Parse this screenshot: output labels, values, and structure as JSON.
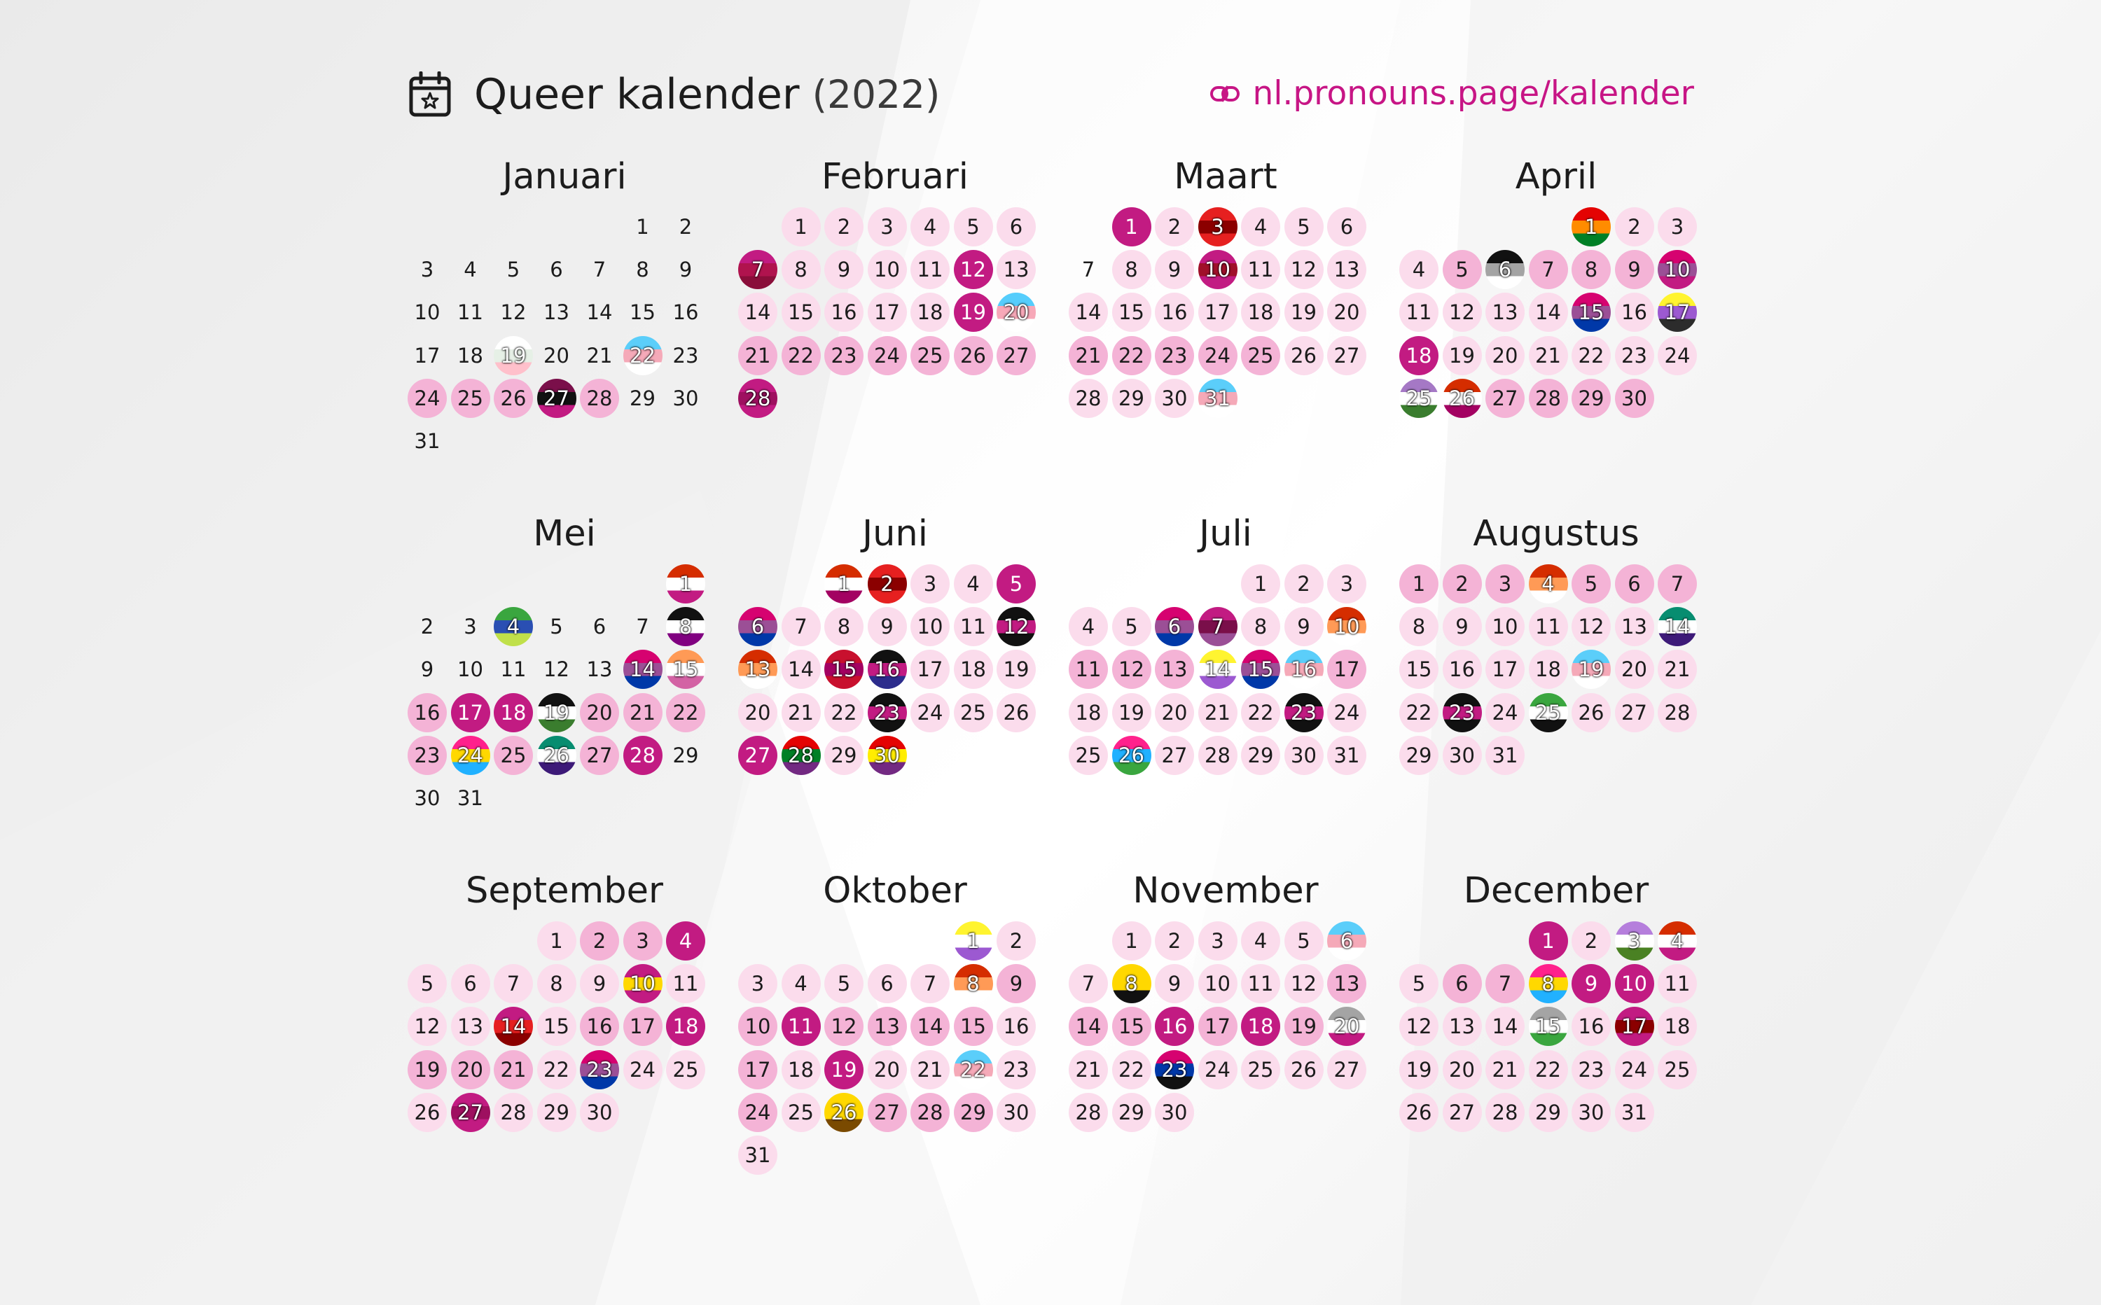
{
  "header": {
    "title": "Queer kalender",
    "year": "(2022)",
    "link": "nl.pronouns.page/kalender",
    "icon": "calendar-star-icon",
    "link_icon": "pronouns-logo-icon"
  },
  "colors": {
    "accent": "#c71585",
    "light": "#fbdcec",
    "medium": "#f4b3d6",
    "strong": "#c21b82"
  },
  "months": [
    {
      "name": "Januari",
      "start": 5,
      "len": 31,
      "l1": [],
      "l2": [
        24,
        25,
        26,
        28
      ],
      "l3": [],
      "flags": {
        "19": [
          "#ffffff",
          "#e6f0e6",
          "#ffc0cb"
        ],
        "22": [
          "#5bcefa",
          "#f5a9b8",
          "#ffffff"
        ],
        "27": [
          "#7a0f4a",
          "#111111",
          "#c21b82"
        ]
      }
    },
    {
      "name": "Februari",
      "start": 1,
      "len": 28,
      "l1": [
        1,
        2,
        3,
        4,
        5,
        6,
        8,
        9,
        10,
        11,
        13,
        14,
        15,
        16,
        17,
        18
      ],
      "l2": [
        21,
        22,
        23,
        24,
        25,
        26,
        27
      ],
      "l3": [
        12,
        19
      ],
      "flags": {
        "7": [
          "#c21b82",
          "#b0134e",
          "#8a0e3a"
        ],
        "20": [
          "#55cdfc",
          "#f7a8b8",
          "#ffffff"
        ],
        "28": [
          "#c21b82",
          "#9e1060",
          "#c21b82"
        ]
      }
    },
    {
      "name": "Maart",
      "start": 1,
      "len": 31,
      "l1": [
        2,
        4,
        5,
        6,
        8,
        9,
        11,
        12,
        13,
        14,
        15,
        16,
        17,
        18,
        19,
        20,
        26,
        27,
        28,
        29,
        30
      ],
      "l2": [
        21,
        22,
        23,
        24,
        25
      ],
      "l3": [
        1
      ],
      "flags": {
        "3": [
          "#e62020",
          "#8b0000",
          "#e62020"
        ],
        "10": [
          "#c21b82",
          "#a0102a",
          "#c21b82"
        ],
        "31": [
          "#5bcefa",
          "#f5a9b8",
          "#ffffff"
        ]
      }
    },
    {
      "name": "April",
      "start": 4,
      "len": 30,
      "l1": [
        2,
        3,
        4,
        11,
        12,
        13,
        14,
        16,
        19,
        20,
        21,
        22,
        23,
        24
      ],
      "l2": [
        5,
        7,
        8,
        9,
        27,
        28,
        29,
        30
      ],
      "l3": [
        18
      ],
      "flags": {
        "1": [
          "#e40303",
          "#ff8c00",
          "#008026"
        ],
        "6": [
          "#111111",
          "#a4a4a4",
          "#ffffff"
        ],
        "10": [
          "#d60270",
          "#9b4f96",
          "#c21b82"
        ],
        "15": [
          "#d60270",
          "#9b4f96",
          "#0038a8"
        ],
        "17": [
          "#fff430",
          "#9c59d1",
          "#2c2c2c"
        ],
        "25": [
          "#a578c5",
          "#ffffff",
          "#3a7d2e"
        ],
        "26": [
          "#d52d00",
          "#ffffff",
          "#a30262"
        ]
      }
    },
    {
      "name": "Mei",
      "start": 6,
      "len": 31,
      "l1": [],
      "l2": [
        16,
        20,
        21,
        22,
        23,
        25,
        27
      ],
      "l3": [
        17,
        18,
        28
      ],
      "flags": {
        "1": [
          "#d52d00",
          "#ffffff",
          "#c21b82"
        ],
        "4": [
          "#3aa63f",
          "#2a4fb3",
          "#c0e04a"
        ],
        "8": [
          "#111111",
          "#ffffff",
          "#800080"
        ],
        "14": [
          "#d60270",
          "#9b4f96",
          "#0038a8"
        ],
        "15": [
          "#ff9a56",
          "#ffffff",
          "#d362a4"
        ],
        "19": [
          "#111111",
          "#ffffff",
          "#3a7d2e"
        ],
        "24": [
          "#ff218c",
          "#ffd800",
          "#21b1ff"
        ],
        "26": [
          "#078d70",
          "#ffffff",
          "#3d1a78"
        ]
      }
    },
    {
      "name": "Juni",
      "start": 2,
      "len": 30,
      "l1": [
        3,
        4,
        7,
        8,
        9,
        10,
        11,
        14,
        17,
        18,
        19,
        20,
        21,
        22,
        24,
        25,
        26,
        29
      ],
      "l2": [],
      "l3": [
        5,
        27
      ],
      "flags": {
        "1": [
          "#d52d00",
          "#ffffff",
          "#a30262"
        ],
        "2": [
          "#e62020",
          "#8b0000",
          "#e62020"
        ],
        "6": [
          "#d60270",
          "#9b4f96",
          "#0038a8"
        ],
        "12": [
          "#111111",
          "#c21b82",
          "#111111"
        ],
        "13": [
          "#d52d00",
          "#ff9a56",
          "#ffffff"
        ],
        "15": [
          "#c8102e",
          "#a30262",
          "#c8102e"
        ],
        "16": [
          "#111111",
          "#c21b82",
          "#2c2c8c"
        ],
        "23": [
          "#111111",
          "#c21b82",
          "#111111"
        ],
        "28": [
          "#e40303",
          "#008026",
          "#732982"
        ],
        "30": [
          "#e40303",
          "#ffed00",
          "#732982"
        ]
      }
    },
    {
      "name": "Juli",
      "start": 4,
      "len": 31,
      "l1": [
        1,
        2,
        3,
        4,
        5,
        8,
        9,
        18,
        19,
        20,
        21,
        22,
        24,
        25,
        27,
        28,
        29,
        30,
        31
      ],
      "l2": [
        11,
        12,
        13,
        17
      ],
      "l3": [],
      "flags": {
        "6": [
          "#d60270",
          "#9b4f96",
          "#0038a8"
        ],
        "7": [
          "#c21b82",
          "#7a0f4a",
          "#9b4f96"
        ],
        "10": [
          "#d52d00",
          "#ff9a56",
          "#ffffff"
        ],
        "14": [
          "#fff430",
          "#ffffff",
          "#9c59d1"
        ],
        "15": [
          "#d60270",
          "#9b4f96",
          "#0038a8"
        ],
        "16": [
          "#5bcefa",
          "#f5a9b8",
          "#ffffff"
        ],
        "23": [
          "#111111",
          "#c21b82",
          "#111111"
        ],
        "26": [
          "#ff218c",
          "#21b1ff",
          "#3aa63f"
        ]
      }
    },
    {
      "name": "Augustus",
      "start": 0,
      "len": 31,
      "l1": [
        8,
        9,
        10,
        11,
        12,
        13,
        15,
        16,
        17,
        18,
        20,
        21,
        22,
        24,
        26,
        27,
        28,
        29,
        30,
        31
      ],
      "l2": [
        1,
        2,
        3,
        5,
        6,
        7
      ],
      "l3": [],
      "flags": {
        "4": [
          "#d52d00",
          "#ff9a56",
          "#ffffff"
        ],
        "14": [
          "#078d70",
          "#ffffff",
          "#3d1a78"
        ],
        "19": [
          "#5bcefa",
          "#f5a9b8",
          "#ffffff"
        ],
        "23": [
          "#111111",
          "#c21b82",
          "#111111"
        ],
        "25": [
          "#3aa63f",
          "#ffffff",
          "#111111"
        ]
      }
    },
    {
      "name": "September",
      "start": 3,
      "len": 30,
      "l1": [
        1,
        5,
        6,
        7,
        8,
        9,
        11,
        12,
        13,
        15,
        22,
        24,
        25,
        26,
        28,
        29,
        30
      ],
      "l2": [
        2,
        3,
        16,
        17,
        19,
        20,
        21
      ],
      "l3": [
        4,
        18
      ],
      "flags": {
        "10": [
          "#c21b82",
          "#ffd800",
          "#c21b82"
        ],
        "14": [
          "#c21b82",
          "#e62020",
          "#8b0000"
        ],
        "23": [
          "#d60270",
          "#9b4f96",
          "#0038a8"
        ],
        "27": [
          "#c21b82",
          "#9e1060",
          "#c21b82"
        ]
      }
    },
    {
      "name": "Oktober",
      "start": 5,
      "len": 31,
      "l1": [
        2,
        3,
        4,
        5,
        6,
        7,
        16,
        18,
        20,
        21,
        23,
        25,
        30,
        31
      ],
      "l2": [
        9,
        10,
        12,
        13,
        14,
        15,
        17,
        24,
        27,
        28,
        29
      ],
      "l3": [
        11,
        19
      ],
      "flags": {
        "1": [
          "#fff430",
          "#ffffff",
          "#9c59d1"
        ],
        "8": [
          "#d52d00",
          "#ff9a56",
          "#ffffff"
        ],
        "22": [
          "#5bcefa",
          "#f5a9b8",
          "#ffffff"
        ],
        "26": [
          "#ffd800",
          "#ffd800",
          "#7a4a00"
        ]
      }
    },
    {
      "name": "November",
      "start": 1,
      "len": 30,
      "l1": [
        1,
        2,
        3,
        4,
        5,
        7,
        9,
        10,
        11,
        12,
        21,
        22,
        24,
        25,
        26,
        27,
        28,
        29,
        30
      ],
      "l2": [
        13,
        14,
        15,
        17,
        19
      ],
      "l3": [
        16,
        18
      ],
      "flags": {
        "6": [
          "#5bcefa",
          "#f5a9b8",
          "#ffffff"
        ],
        "8": [
          "#ffd800",
          "#ffd800",
          "#111111"
        ],
        "20": [
          "#a4a4a4",
          "#ffffff",
          "#c21b82"
        ],
        "23": [
          "#d60270",
          "#0038a8",
          "#111111"
        ]
      }
    },
    {
      "name": "December",
      "start": 3,
      "len": 31,
      "l1": [
        2,
        5,
        11,
        12,
        13,
        14,
        16,
        18,
        19,
        20,
        21,
        22,
        23,
        24,
        25,
        26,
        27,
        28,
        29,
        30,
        31
      ],
      "l2": [
        6,
        7
      ],
      "l3": [
        1,
        9,
        10
      ],
      "flags": {
        "3": [
          "#b57edc",
          "#ffffff",
          "#4a8123"
        ],
        "4": [
          "#d52d00",
          "#ffffff",
          "#c21b82"
        ],
        "8": [
          "#ff218c",
          "#ffd800",
          "#21b1ff"
        ],
        "15": [
          "#a4a4a4",
          "#ffffff",
          "#3aa63f"
        ],
        "17": [
          "#c21b82",
          "#8b0000",
          "#c21b82"
        ]
      }
    }
  ]
}
